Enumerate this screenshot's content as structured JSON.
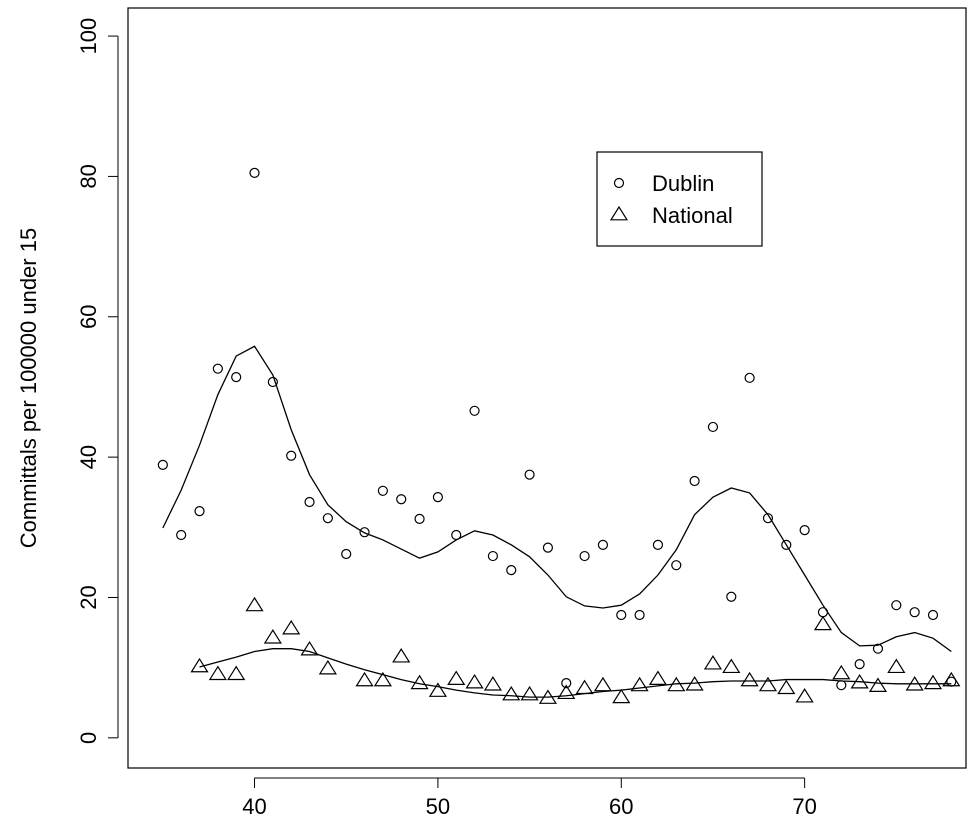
{
  "chart_data": {
    "type": "scatter",
    "y_label": "Committals per 100000 under 15",
    "xlim": [
      33.1,
      78.8
    ],
    "ylim": [
      -4.3,
      104
    ],
    "xticks": [
      40,
      50,
      60,
      70
    ],
    "yticks": [
      0,
      20,
      40,
      60,
      80,
      100
    ],
    "legend": "top-right",
    "color": "#000000",
    "series": [
      {
        "name": "Dublin",
        "marker": "circle",
        "x": [
          35,
          36,
          37,
          38,
          39,
          40,
          41,
          42,
          43,
          44,
          45,
          46,
          47,
          48,
          49,
          50,
          51,
          52,
          53,
          54,
          55,
          56,
          57,
          58,
          59,
          60,
          61,
          62,
          63,
          64,
          65,
          66,
          67,
          68,
          69,
          70,
          71,
          72,
          73,
          74,
          75,
          76,
          77,
          78
        ],
        "values": [
          38.9,
          28.9,
          32.3,
          52.6,
          51.4,
          80.5,
          50.7,
          40.2,
          33.6,
          31.3,
          26.2,
          29.3,
          35.2,
          34.0,
          31.2,
          34.3,
          28.9,
          46.6,
          25.9,
          23.9,
          37.5,
          27.1,
          7.8,
          25.9,
          27.5,
          17.5,
          17.5,
          27.5,
          24.6,
          36.6,
          44.3,
          20.1,
          51.3,
          31.3,
          27.5,
          29.6,
          17.9,
          7.5,
          10.5,
          12.7,
          18.9,
          17.9,
          17.5,
          8.0
        ],
        "smooth": {
          "x": [
            35,
            36,
            37,
            38,
            39,
            40,
            41,
            42,
            43,
            44,
            45,
            46,
            47,
            48,
            49,
            50,
            51,
            52,
            53,
            54,
            55,
            56,
            57,
            58,
            59,
            60,
            61,
            62,
            63,
            64,
            65,
            66,
            67,
            68,
            69,
            70,
            71,
            72,
            73,
            74,
            75,
            76,
            77,
            78
          ],
          "values": [
            29.9,
            35.3,
            41.7,
            48.9,
            54.4,
            55.8,
            51.7,
            43.9,
            37.5,
            33.2,
            30.8,
            29.2,
            28.2,
            26.9,
            25.6,
            26.5,
            28.2,
            29.5,
            28.9,
            27.5,
            25.8,
            23.2,
            20.1,
            18.8,
            18.5,
            18.9,
            20.5,
            23.2,
            26.8,
            31.8,
            34.3,
            35.6,
            34.9,
            31.8,
            27.5,
            23.2,
            18.9,
            15.0,
            13.1,
            13.2,
            14.4,
            15.0,
            14.2,
            12.3
          ]
        }
      },
      {
        "name": "National",
        "marker": "triangle",
        "x": [
          37,
          38,
          39,
          40,
          41,
          42,
          43,
          44,
          46,
          47,
          48,
          49,
          50,
          51,
          52,
          53,
          54,
          55,
          56,
          57,
          58,
          59,
          60,
          61,
          62,
          63,
          64,
          65,
          66,
          67,
          68,
          69,
          70,
          71,
          72,
          73,
          74,
          75,
          76,
          77,
          78
        ],
        "values": [
          10.1,
          9.0,
          9.0,
          18.8,
          14.2,
          15.5,
          12.5,
          9.8,
          8.1,
          8.1,
          11.5,
          7.7,
          6.6,
          8.3,
          7.8,
          7.5,
          6.1,
          6.1,
          5.6,
          6.3,
          7.0,
          7.4,
          5.7,
          7.4,
          8.3,
          7.4,
          7.5,
          10.5,
          10.0,
          8.1,
          7.4,
          7.0,
          5.8,
          16.1,
          9.1,
          7.8,
          7.3,
          10.0,
          7.5,
          7.7,
          8.1
        ],
        "smooth": {
          "x": [
            37,
            38,
            39,
            40,
            41,
            42,
            43,
            44,
            45,
            46,
            47,
            48,
            49,
            50,
            51,
            52,
            53,
            54,
            55,
            56,
            57,
            58,
            59,
            60,
            61,
            62,
            63,
            64,
            65,
            66,
            67,
            68,
            69,
            70,
            71,
            72,
            73,
            74,
            75,
            76,
            77,
            78
          ],
          "values": [
            10.1,
            10.8,
            11.5,
            12.3,
            12.7,
            12.7,
            12.3,
            11.4,
            10.5,
            9.7,
            9.0,
            8.3,
            7.7,
            7.3,
            6.8,
            6.4,
            6.1,
            6.0,
            5.8,
            5.8,
            6.0,
            6.3,
            6.6,
            6.8,
            7.1,
            7.4,
            7.7,
            7.8,
            8.0,
            8.1,
            8.1,
            8.1,
            8.3,
            8.3,
            8.3,
            8.1,
            8.0,
            7.8,
            7.7,
            7.7,
            7.7,
            7.7
          ]
        }
      }
    ]
  }
}
